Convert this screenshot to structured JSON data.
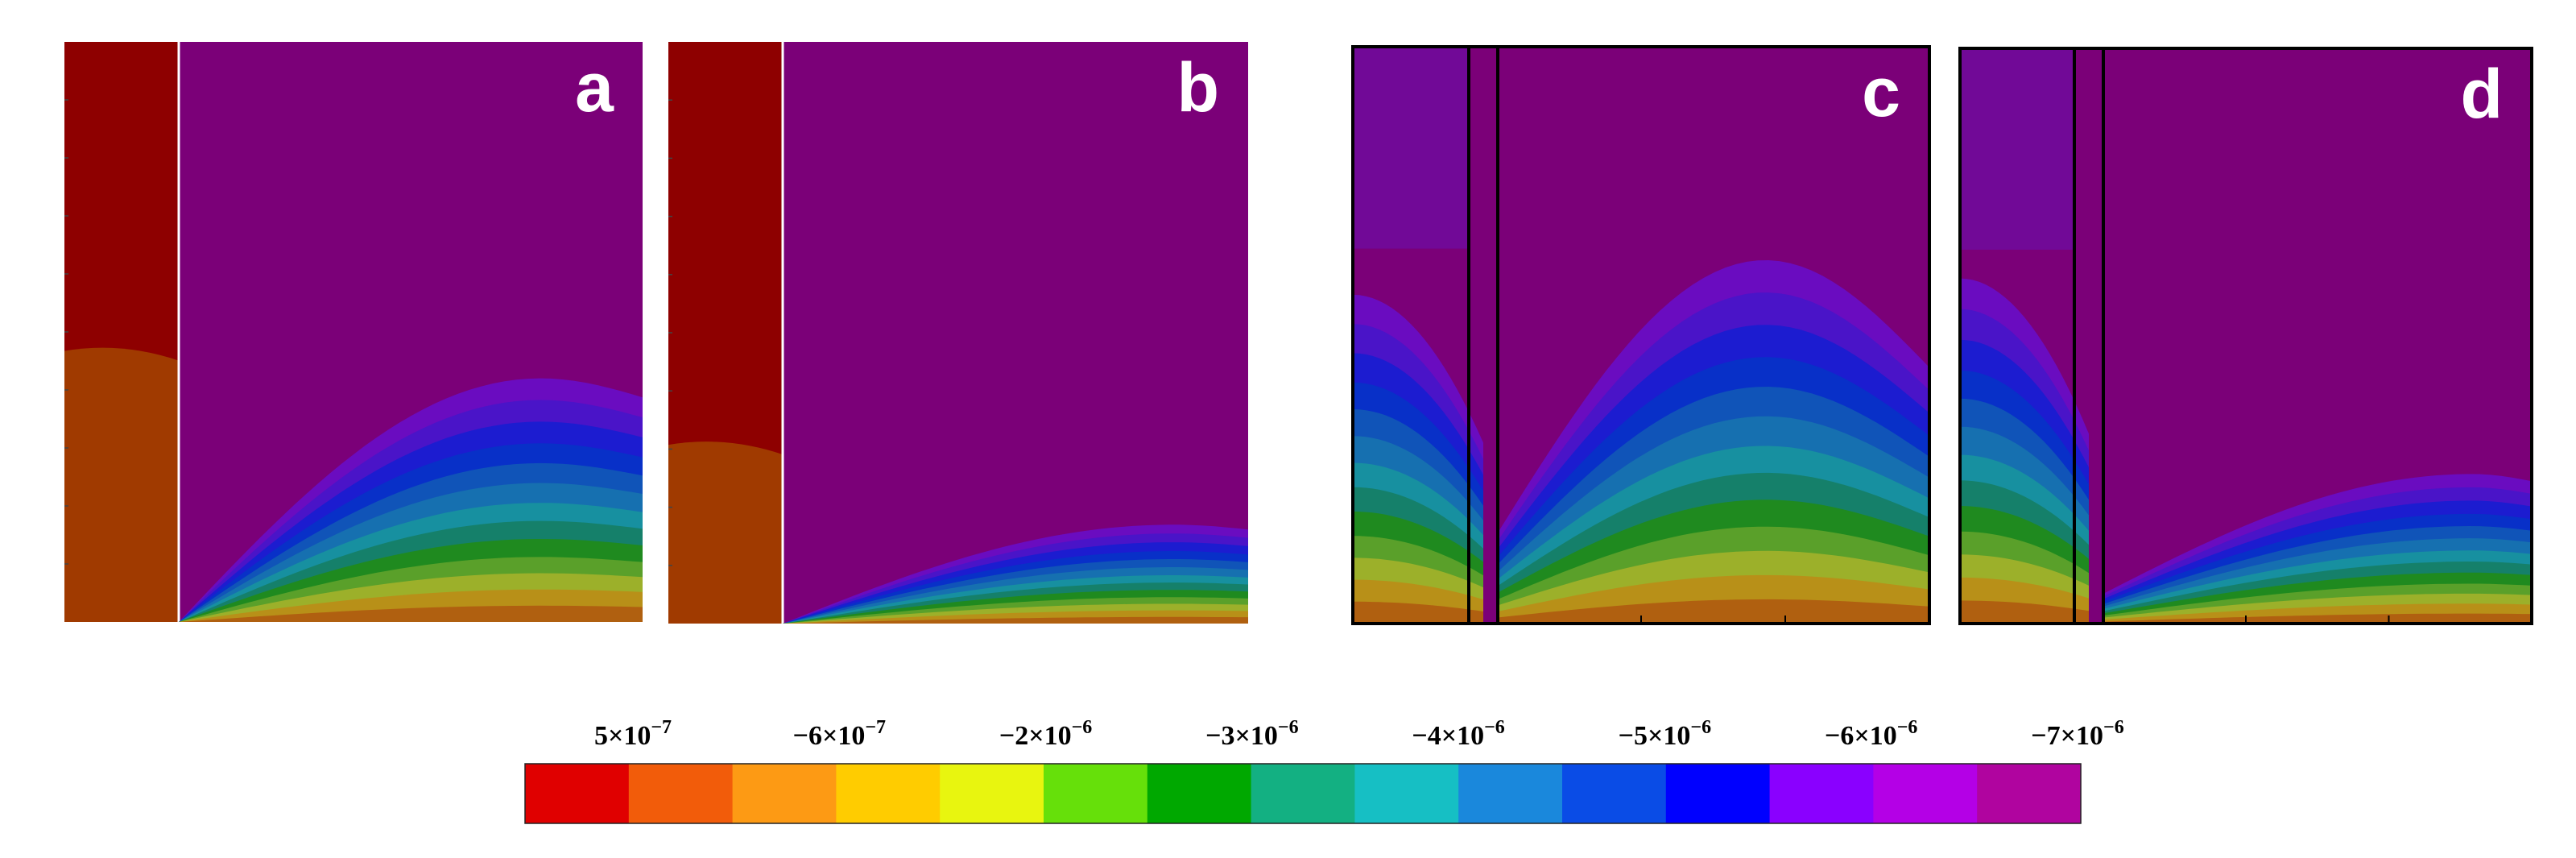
{
  "chart_data": {
    "type": "contour",
    "panels": [
      {
        "label": "a",
        "has_left_bar": true,
        "channel": false,
        "cross_border": false
      },
      {
        "label": "b",
        "has_left_bar": true,
        "channel": false,
        "cross_border": false
      },
      {
        "label": "c",
        "has_left_bar": false,
        "channel": true,
        "cross_border": true
      },
      {
        "label": "d",
        "has_left_bar": false,
        "channel": true,
        "cross_border": false
      }
    ],
    "colorbar": {
      "tick_labels": [
        {
          "mantissa": "5",
          "exponent": "−7"
        },
        {
          "mantissa": "−6",
          "exponent": "−7"
        },
        {
          "mantissa": "−2",
          "exponent": "−6"
        },
        {
          "mantissa": "−3",
          "exponent": "−6"
        },
        {
          "mantissa": "−4",
          "exponent": "−6"
        },
        {
          "mantissa": "−5",
          "exponent": "−6"
        },
        {
          "mantissa": "−6",
          "exponent": "−6"
        },
        {
          "mantissa": "−7",
          "exponent": "−6"
        }
      ],
      "colors": [
        "#e00000",
        "#f25c0a",
        "#fd9a14",
        "#ffcc00",
        "#e8f50f",
        "#66e00a",
        "#00a800",
        "#13b082",
        "#16bfc4",
        "#1a88dc",
        "#0a4ce6",
        "#0000ff",
        "#8a00ff",
        "#b400e6",
        "#b0049f"
      ],
      "times_symbol": "×",
      "base": "10"
    },
    "band_colors": [
      "#b06010",
      "#b89018",
      "#9cb02a",
      "#5aa02a",
      "#1f8a1f",
      "#15806a",
      "#1790a0",
      "#1670b0",
      "#1054b8",
      "#0830c8",
      "#1c1cd0",
      "#4a14c8",
      "#6a0cc0"
    ],
    "background_color": "#7b0078",
    "solid_bar_top_color": "#8e0000",
    "solid_bar_bottom_color": "#a03a00"
  }
}
